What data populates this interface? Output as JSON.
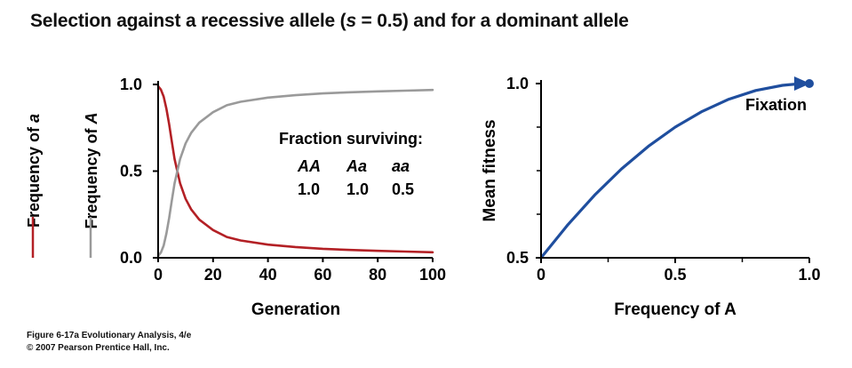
{
  "title": {
    "prefix": "Selection against a recessive allele (",
    "s_symbol": "s",
    "s_value": " = 0.5) and for a dominant allele"
  },
  "caption": {
    "line1": "Figure 6-17a  Evolutionary Analysis, 4/e",
    "line2": "© 2007 Pearson Prentice Hall, Inc."
  },
  "chart_data": [
    {
      "type": "line",
      "xlabel": "Generation",
      "x_ticks": [
        "0",
        "20",
        "40",
        "60",
        "80",
        "100"
      ],
      "y_ticks": [
        "0.0",
        "0.5",
        "1.0"
      ],
      "xlim": [
        0,
        100
      ],
      "ylim": [
        0,
        1
      ],
      "ylabels": {
        "a_prefix": "Frequency of ",
        "a_symbol": "a",
        "A_prefix": "Frequency of ",
        "A_symbol": "A"
      },
      "series": [
        {
          "name": "Frequency of a",
          "color": "#b32025",
          "x": [
            0,
            1,
            2,
            3,
            4,
            5,
            6,
            8,
            10,
            12,
            15,
            20,
            25,
            30,
            40,
            50,
            60,
            70,
            80,
            90,
            100
          ],
          "y": [
            0.99,
            0.97,
            0.93,
            0.86,
            0.77,
            0.67,
            0.57,
            0.43,
            0.34,
            0.28,
            0.22,
            0.16,
            0.12,
            0.1,
            0.076,
            0.062,
            0.052,
            0.045,
            0.04,
            0.036,
            0.032
          ]
        },
        {
          "name": "Frequency of A",
          "color": "#9a9a9a",
          "x": [
            0,
            1,
            2,
            3,
            4,
            5,
            6,
            8,
            10,
            12,
            15,
            20,
            25,
            30,
            40,
            50,
            60,
            70,
            80,
            90,
            100
          ],
          "y": [
            0.01,
            0.03,
            0.07,
            0.14,
            0.23,
            0.33,
            0.43,
            0.57,
            0.66,
            0.72,
            0.78,
            0.84,
            0.88,
            0.9,
            0.924,
            0.938,
            0.948,
            0.955,
            0.96,
            0.964,
            0.968
          ]
        }
      ],
      "annotation": {
        "heading": "Fraction surviving:",
        "genotypes": [
          "AA",
          "Aa",
          "aa"
        ],
        "values": [
          "1.0",
          "1.0",
          "0.5"
        ]
      }
    },
    {
      "type": "line",
      "xlabel": "Frequency of A",
      "ylabel": "Mean fitness",
      "x_ticks": [
        "0",
        "0.5",
        "1.0"
      ],
      "y_ticks": [
        "0.5",
        "1.0"
      ],
      "xlim": [
        0,
        1
      ],
      "ylim": [
        0.5,
        1
      ],
      "series": [
        {
          "color": "#1f4e9e",
          "x": [
            0,
            0.1,
            0.2,
            0.3,
            0.4,
            0.5,
            0.6,
            0.7,
            0.8,
            0.9,
            0.97
          ],
          "y": [
            0.5,
            0.595,
            0.68,
            0.755,
            0.82,
            0.875,
            0.92,
            0.955,
            0.98,
            0.995,
            1.0
          ]
        }
      ],
      "endpoint": {
        "x": 1.0,
        "y": 1.0,
        "label": "Fixation"
      }
    }
  ]
}
